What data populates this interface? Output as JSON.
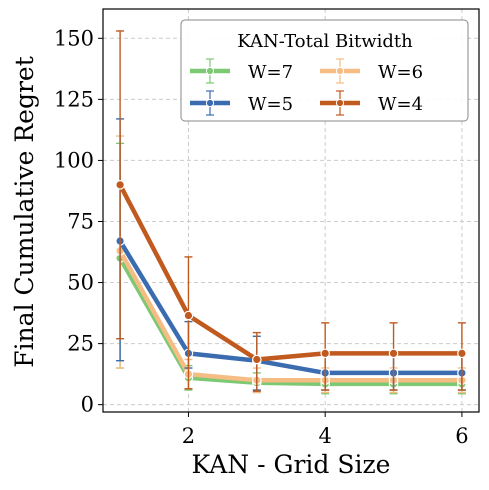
{
  "chart_data": {
    "type": "line",
    "xlabel": "KAN - Grid Size",
    "ylabel": "Final Cumulative Regret",
    "xlim": [
      0.75,
      6.25
    ],
    "ylim": [
      -3,
      162
    ],
    "xticks": [
      2,
      4,
      6
    ],
    "yticks": [
      0,
      25,
      50,
      75,
      100,
      125,
      150
    ],
    "grid": true,
    "legend": {
      "title": "KAN-Total Bitwidth",
      "placement": "top-right",
      "columns": 2
    },
    "x": [
      1,
      2,
      3,
      4,
      5,
      6
    ],
    "series": [
      {
        "name": "W=7",
        "color": "#7dc873",
        "values": [
          60,
          11,
          9,
          8.5,
          8.5,
          8.5
        ],
        "err_low": [
          45,
          5,
          4,
          4,
          4,
          4
        ],
        "err_high": [
          47,
          5,
          4,
          4,
          4,
          4
        ]
      },
      {
        "name": "W=6",
        "color": "#f5bd84",
        "values": [
          63,
          12.5,
          10,
          10,
          10,
          10
        ],
        "err_low": [
          48,
          6,
          5,
          5,
          5,
          5
        ],
        "err_high": [
          47,
          6,
          5,
          5,
          5,
          5
        ]
      },
      {
        "name": "W=5",
        "color": "#3b6cb0",
        "values": [
          67,
          21,
          18,
          13,
          13,
          13
        ],
        "err_low": [
          49,
          6,
          12,
          7,
          7,
          7
        ],
        "err_high": [
          50,
          13,
          10,
          8,
          8,
          8
        ]
      },
      {
        "name": "W=4",
        "color": "#c05a1e",
        "values": [
          90,
          36.5,
          18.5,
          21,
          21,
          21
        ],
        "err_low": [
          63,
          30,
          13,
          15,
          15,
          15
        ],
        "err_high": [
          63,
          24,
          11,
          12.5,
          12.5,
          12.5
        ]
      }
    ]
  }
}
